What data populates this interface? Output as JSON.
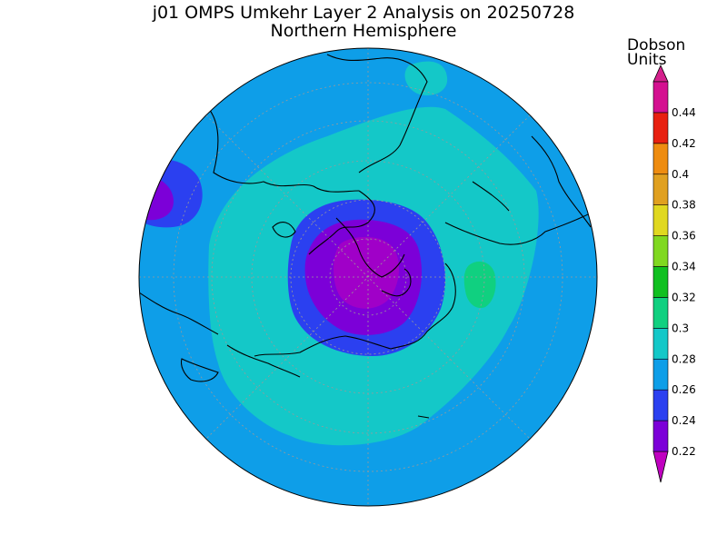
{
  "title": "j01 OMPS Umkehr Layer 2 Analysis on 20250728",
  "subtitle": "Northern Hemisphere",
  "colorbar": {
    "units_line1": "Dobson",
    "units_line2": "Units",
    "levels": [
      {
        "value": "0.22",
        "color": "#7c00d8"
      },
      {
        "value": "0.24",
        "color": "#2b40f0"
      },
      {
        "value": "0.26",
        "color": "#0e9ee8"
      },
      {
        "value": "0.28",
        "color": "#14c8c8"
      },
      {
        "value": "0.3",
        "color": "#10d080"
      },
      {
        "value": "0.32",
        "color": "#10c020"
      },
      {
        "value": "0.34",
        "color": "#80d820"
      },
      {
        "value": "0.36",
        "color": "#e0d820"
      },
      {
        "value": "0.38",
        "color": "#e0a020"
      },
      {
        "value": "0.4",
        "color": "#ee8c10"
      },
      {
        "value": "0.42",
        "color": "#e82010"
      },
      {
        "value": "0.44",
        "color": "#d41090"
      }
    ],
    "min_arrow_color": "#c000c0",
    "max_arrow_color": "#d4208c"
  },
  "map": {
    "projection": "polar stereographic",
    "hemisphere": "north",
    "field_colors": {
      "ocean_background": "#0e9ee8",
      "ring": "#14c8c8",
      "low_outer": "#2b40f0",
      "low_mid": "#7c00d8",
      "low_core": "#a000c8",
      "high_patch": "#10d080"
    }
  }
}
